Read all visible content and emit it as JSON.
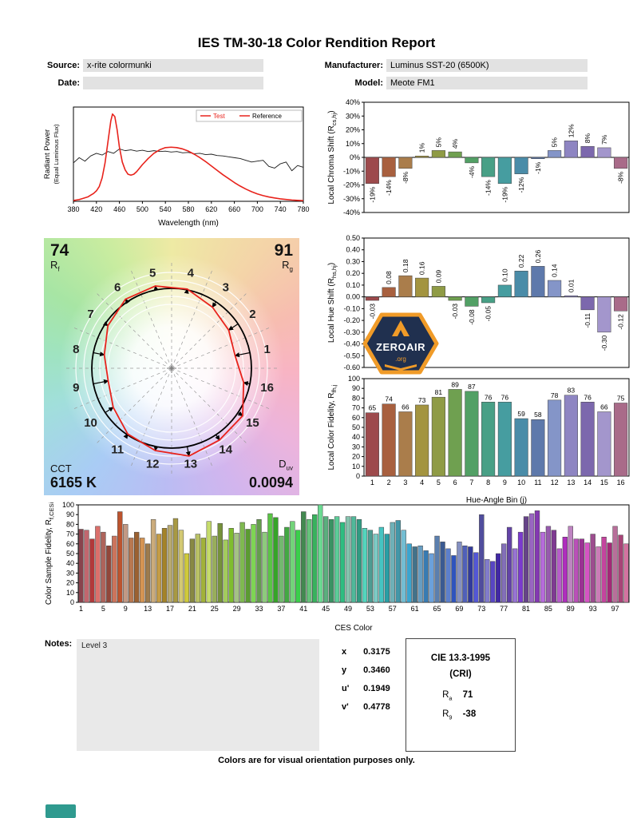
{
  "report": {
    "title": "IES TM-30-18 Color Rendition Report",
    "source_label": "Source:",
    "source_value": "x-rite colormunki",
    "manufacturer_label": "Manufacturer:",
    "manufacturer_value": "Luminus SST-20 (6500K)",
    "date_label": "Date:",
    "date_value": "",
    "model_label": "Model:",
    "model_value": "Meote FM1",
    "footer": "Colors are for visual orientation purposes only."
  },
  "cvg": {
    "rf_value": "74",
    "rf_main": "R",
    "rf_sub": "f",
    "rg_value": "91",
    "rg_main": "R",
    "rg_sub": "g",
    "cct_label": "CCT",
    "cct_value": "6165 K",
    "duv_main": "D",
    "duv_sub": "uv",
    "duv_value": "0.0094",
    "bin_labels": [
      "1",
      "2",
      "3",
      "4",
      "5",
      "6",
      "7",
      "8",
      "9",
      "10",
      "11",
      "12",
      "13",
      "14",
      "15",
      "16"
    ],
    "reference_radius": 1.0,
    "test_radii": [
      0.81,
      0.86,
      0.92,
      1.01,
      1.05,
      1.04,
      0.96,
      0.86,
      0.81,
      0.88,
      0.99,
      1.05,
      1.12,
      1.08,
      1.07,
      0.92
    ],
    "test_color": "#e8231c",
    "reference_color": "#000000"
  },
  "logo": {
    "text": "ZEROAIR",
    "suffix": ".org"
  },
  "notes": {
    "label": "Notes:",
    "value": "Level 3"
  },
  "chromaticity": {
    "rows": [
      {
        "name": "x",
        "value": "0.3175"
      },
      {
        "name": "y",
        "value": "0.3460"
      },
      {
        "name": "u'",
        "value": "0.1949"
      },
      {
        "name": "v'",
        "value": "0.4778"
      }
    ]
  },
  "cri_box": {
    "title": "CIE 13.3-1995",
    "subtitle": "(CRI)",
    "ra_main": "R",
    "ra_sub": "a",
    "ra_value": "71",
    "r9_main": "R",
    "r9_sub": "9",
    "r9_value": "-38"
  },
  "bin_colors": [
    "#9d4a4c",
    "#a8603f",
    "#aa7d4b",
    "#a39440",
    "#8f9b45",
    "#6fa050",
    "#52a065",
    "#48a086",
    "#469da0",
    "#4a8ca8",
    "#5e79ab",
    "#8495c8",
    "#8e85c2",
    "#7c68ad",
    "#a396cc",
    "#a96b89"
  ],
  "chart_data": [
    {
      "id": "spd",
      "type": "line",
      "xlabel": "Wavelength (nm)",
      "ylabel": "Radiant Power",
      "ylabel2": "(Equal Luminous Flux)",
      "xlim": [
        380,
        780
      ],
      "xtick_step": 40,
      "ylim": [
        0,
        1.08
      ],
      "legend": [
        {
          "label": "Test",
          "color": "#e8231c",
          "text_color": "#e8231c"
        },
        {
          "label": "Reference",
          "color": "#e8231c",
          "text_color": "#000000"
        }
      ],
      "series": [
        {
          "name": "Reference",
          "color": "#1a1a1a",
          "width": 0.9,
          "x": [
            380,
            390,
            400,
            410,
            420,
            430,
            440,
            450,
            460,
            470,
            480,
            490,
            500,
            510,
            520,
            530,
            540,
            550,
            560,
            570,
            580,
            590,
            600,
            610,
            620,
            630,
            640,
            650,
            660,
            670,
            680,
            690,
            700,
            710,
            720,
            730,
            740,
            750,
            760,
            770,
            780
          ],
          "y": [
            0.44,
            0.5,
            0.46,
            0.52,
            0.55,
            0.53,
            0.57,
            0.55,
            0.6,
            0.58,
            0.59,
            0.575,
            0.585,
            0.57,
            0.58,
            0.57,
            0.575,
            0.565,
            0.57,
            0.555,
            0.56,
            0.545,
            0.55,
            0.535,
            0.54,
            0.525,
            0.52,
            0.51,
            0.5,
            0.49,
            0.47,
            0.45,
            0.46,
            0.47,
            0.4,
            0.38,
            0.43,
            0.45,
            0.35,
            0.41,
            0.39
          ]
        },
        {
          "name": "Test",
          "color": "#e8231c",
          "width": 1.6,
          "x": [
            380,
            385,
            390,
            395,
            400,
            405,
            410,
            415,
            420,
            425,
            430,
            435,
            440,
            445,
            448,
            452,
            456,
            460,
            465,
            470,
            475,
            480,
            485,
            490,
            495,
            500,
            510,
            520,
            530,
            540,
            550,
            560,
            570,
            580,
            590,
            600,
            610,
            620,
            630,
            640,
            650,
            660,
            670,
            680,
            690,
            700,
            710,
            720,
            730,
            740,
            750,
            760,
            770,
            780
          ],
          "y": [
            0.01,
            0.015,
            0.02,
            0.03,
            0.04,
            0.05,
            0.07,
            0.09,
            0.12,
            0.17,
            0.27,
            0.44,
            0.68,
            0.92,
            1.0,
            0.97,
            0.82,
            0.62,
            0.45,
            0.36,
            0.31,
            0.3,
            0.31,
            0.34,
            0.38,
            0.42,
            0.49,
            0.55,
            0.59,
            0.615,
            0.62,
            0.615,
            0.6,
            0.575,
            0.54,
            0.5,
            0.455,
            0.405,
            0.355,
            0.305,
            0.26,
            0.215,
            0.175,
            0.14,
            0.11,
            0.085,
            0.065,
            0.05,
            0.038,
            0.028,
            0.021,
            0.015,
            0.011,
            0.008
          ]
        }
      ]
    },
    {
      "id": "chroma_shift",
      "type": "bar",
      "ylabel_pre": "Local Chroma Shift (R",
      "ylabel_sub": "cs,hj",
      "ylabel_post": ")",
      "ylim": [
        -40,
        40
      ],
      "ytick_step": 10,
      "values": [
        -19,
        -14,
        -8,
        1,
        5,
        4,
        -4,
        -14,
        -19,
        -12,
        -1,
        5,
        12,
        8,
        7,
        -8
      ],
      "labels": [
        "-19%",
        "-14%",
        "-8%",
        "1%",
        "5%",
        "4%",
        "-4%",
        "-14%",
        "-19%",
        "-12%",
        "-1%",
        "5%",
        "12%",
        "8%",
        "7%",
        "-8%"
      ]
    },
    {
      "id": "hue_shift",
      "type": "bar",
      "ylabel_pre": "Local Hue Shift (R",
      "ylabel_sub": "hs,hj",
      "ylabel_post": ")",
      "ylim": [
        -0.6,
        0.5
      ],
      "ytick_step": 0.1,
      "values": [
        -0.03,
        0.08,
        0.18,
        0.16,
        0.09,
        -0.03,
        -0.08,
        -0.05,
        0.1,
        0.22,
        0.26,
        0.14,
        0.01,
        -0.11,
        -0.3,
        -0.12
      ],
      "labels": [
        "-0.03",
        "0.08",
        "0.18",
        "0.16",
        "0.09",
        "-0.03",
        "-0.08",
        "-0.05",
        "0.10",
        "0.22",
        "0.26",
        "0.14",
        "0.01",
        "-0.11",
        "-0.30",
        "-0.12"
      ]
    },
    {
      "id": "local_fidelity",
      "type": "bar",
      "ylabel_pre": "Local Color Fidelity, R",
      "ylabel_sub": "fh,j",
      "ylabel_post": "",
      "xlabel": "Hue-Angle Bin (j)",
      "ylim": [
        0,
        100
      ],
      "ytick_step": 10,
      "values": [
        65,
        74,
        66,
        73,
        81,
        89,
        87,
        76,
        76,
        59,
        58,
        78,
        83,
        76,
        66,
        75
      ],
      "labels": [
        "65",
        "74",
        "66",
        "73",
        "81",
        "89",
        "87",
        "76",
        "76",
        "59",
        "58",
        "78",
        "83",
        "76",
        "66",
        "75"
      ],
      "xticks": [
        "1",
        "2",
        "3",
        "4",
        "5",
        "6",
        "7",
        "8",
        "9",
        "10",
        "11",
        "12",
        "13",
        "14",
        "15",
        "16"
      ]
    },
    {
      "id": "ces_fidelity",
      "type": "bar",
      "ylabel_pre": "Color Sample Fidelity, R",
      "ylabel_sub": "f,CESi",
      "ylabel_post": "",
      "xlabel": "CES Color",
      "ylim": [
        0,
        100
      ],
      "ytick_step": 10,
      "xtick_start": 1,
      "xtick_every": 4,
      "values": [
        75,
        74,
        65,
        78,
        72,
        58,
        68,
        93,
        80,
        66,
        72,
        66,
        60,
        85,
        70,
        76,
        79,
        86,
        74,
        50,
        65,
        70,
        66,
        83,
        68,
        81,
        64,
        76,
        71,
        82,
        75,
        80,
        85,
        72,
        91,
        87,
        68,
        77,
        83,
        74,
        93,
        85,
        90,
        100,
        88,
        85,
        88,
        82,
        88,
        88,
        85,
        76,
        74,
        70,
        77,
        70,
        82,
        84,
        74,
        60,
        57,
        58,
        53,
        50,
        68,
        62,
        55,
        48,
        62,
        58,
        57,
        51,
        90,
        44,
        42,
        50,
        60,
        77,
        55,
        72,
        88,
        91,
        94,
        72,
        78,
        74,
        55,
        67,
        78,
        65,
        65,
        61,
        70,
        57,
        67,
        61,
        78,
        69,
        60
      ]
    }
  ]
}
